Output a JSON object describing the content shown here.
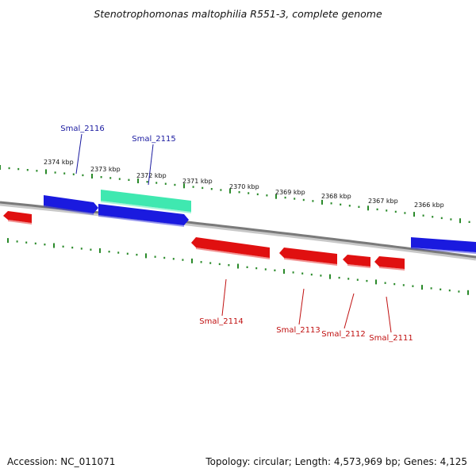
{
  "title": "Stenotrophomonas maltophilia R551-3, complete genome",
  "footer": {
    "accession": "Accession: NC_011071",
    "summary": "Topology: circular; Length: 4,573,969 bp; Genes: 4,125"
  },
  "colors": {
    "forward_gene": "#1a1adf",
    "reverse_gene": "#e01010",
    "highlight_gene": "#3fe8b0",
    "backbone": "#7a7a7a",
    "ticks": "#2a8a2a",
    "forward_label": "#1a1aa0",
    "reverse_label": "#c01010"
  },
  "ruler": {
    "unit": "kbp",
    "labels": [
      "2374 kbp",
      "2373 kbp",
      "2372 kbp",
      "2371 kbp",
      "2370 kbp",
      "2369 kbp",
      "2368 kbp",
      "2367 kbp",
      "2366 kbp"
    ]
  },
  "genes": [
    {
      "label": "Smal_2116",
      "strand": "forward",
      "highlight": false
    },
    {
      "label": "Smal_2115",
      "strand": "forward",
      "highlight": true
    },
    {
      "label": "Smal_2114",
      "strand": "reverse",
      "highlight": false
    },
    {
      "label": "Smal_2113",
      "strand": "reverse",
      "highlight": false
    },
    {
      "label": "Smal_2112",
      "strand": "reverse",
      "highlight": false
    },
    {
      "label": "Smal_2111",
      "strand": "reverse",
      "highlight": false
    }
  ]
}
